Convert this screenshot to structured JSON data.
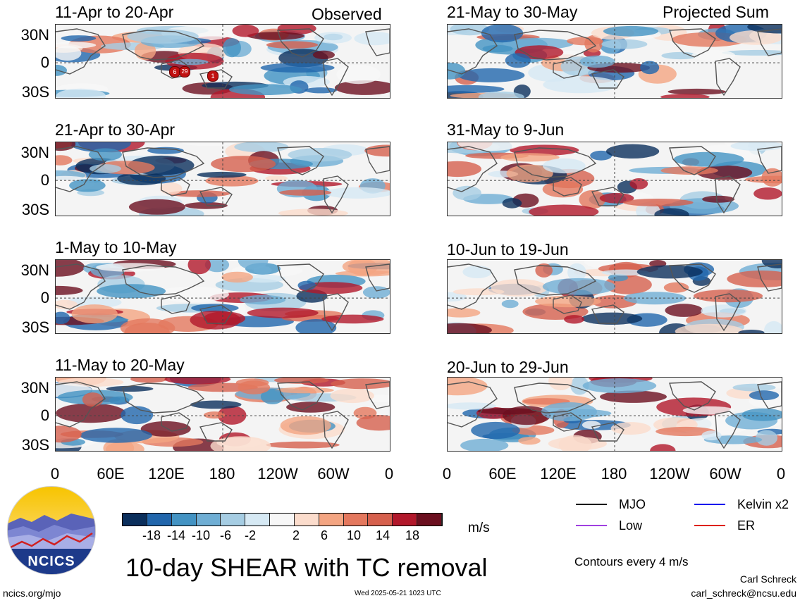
{
  "panels_left": [
    {
      "title": "11-Apr to 20-Apr",
      "tag": "Observed"
    },
    {
      "title": "21-Apr to 30-Apr",
      "tag": ""
    },
    {
      "title": "1-May to 10-May",
      "tag": ""
    },
    {
      "title": "11-May to 20-May",
      "tag": ""
    }
  ],
  "panels_right": [
    {
      "title": "21-May to 30-May",
      "tag": "Projected Sum"
    },
    {
      "title": "31-May to 9-Jun",
      "tag": ""
    },
    {
      "title": "10-Jun to 19-Jun",
      "tag": ""
    },
    {
      "title": "20-Jun to 29-Jun",
      "tag": ""
    }
  ],
  "y_ticks": [
    "30N",
    "0",
    "30S"
  ],
  "x_ticks": [
    "0",
    "60E",
    "120E",
    "180",
    "120W",
    "60W",
    "0"
  ],
  "tc_markers": [
    "6",
    "29",
    "1"
  ],
  "colorbar": {
    "labels": [
      "-18",
      "-14",
      "-10",
      "-6",
      "-2",
      "2",
      "6",
      "10",
      "14",
      "18"
    ],
    "colors": [
      "#0b2f5c",
      "#2166ac",
      "#4393c3",
      "#6faed4",
      "#a6cde3",
      "#d6e9f4",
      "#f7f7f7",
      "#fbdccc",
      "#f4a582",
      "#e4785e",
      "#d6604d",
      "#b2182b",
      "#6b0f1f"
    ],
    "units": "m/s"
  },
  "legend": {
    "items": [
      {
        "label": "MJO",
        "color": "#000000"
      },
      {
        "label": "Kelvin x2",
        "color": "#1010ee"
      },
      {
        "label": "Low",
        "color": "#a040e0"
      },
      {
        "label": "ER",
        "color": "#dd2200"
      }
    ],
    "contour_note": "Contours every 4 m/s"
  },
  "main_title": "10-day SHEAR with TC removal",
  "logo_text": "NCICS",
  "footer": {
    "site": "ncics.org/mjo",
    "timestamp": "Wed 2025-05-21 1023 UTC",
    "author": "Carl Schreck",
    "email": "carl_schreck@ncsu.edu"
  }
}
